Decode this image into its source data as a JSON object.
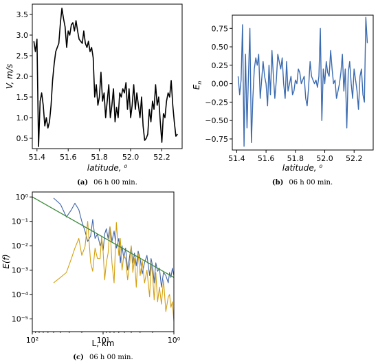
{
  "chart_data": [
    {
      "id": "a",
      "type": "line",
      "caption_tag": "(a)",
      "caption": "06 h 00 min.",
      "xlabel": "latitude, ⁰",
      "ylabel": "V, m/s",
      "xlim": [
        51.37,
        52.33
      ],
      "ylim": [
        0.25,
        3.75
      ],
      "xticks": [
        51.4,
        51.6,
        51.8,
        52.0,
        52.2
      ],
      "xtick_labels": [
        "51.4",
        "51.6",
        "51.8",
        "52.0",
        "52.2"
      ],
      "yticks": [
        0.5,
        1.0,
        1.5,
        2.0,
        2.5,
        3.0,
        3.5
      ],
      "ytick_labels": [
        "0.5",
        "1.0",
        "1.5",
        "2.0",
        "2.5",
        "3.0",
        "3.5"
      ],
      "color": "#000000",
      "series": [
        {
          "x": [
            51.38,
            51.39,
            51.4,
            51.41,
            51.42,
            51.43,
            51.44,
            51.45,
            51.46,
            51.47,
            51.48,
            51.49,
            51.5,
            51.51,
            51.52,
            51.53,
            51.54,
            51.55,
            51.56,
            51.57,
            51.58,
            51.59,
            51.6,
            51.61,
            51.62,
            51.63,
            51.64,
            51.65,
            51.66,
            51.67,
            51.68,
            51.69,
            51.7,
            51.71,
            51.72,
            51.73,
            51.74,
            51.75,
            51.76,
            51.77,
            51.78,
            51.79,
            51.8,
            51.81,
            51.82,
            51.83,
            51.84,
            51.85,
            51.86,
            51.87,
            51.88,
            51.89,
            51.9,
            51.91,
            51.92,
            51.93,
            51.94,
            51.95,
            51.96,
            51.97,
            51.98,
            51.99,
            52.0,
            52.01,
            52.02,
            52.03,
            52.04,
            52.05,
            52.06,
            52.07,
            52.08,
            52.09,
            52.1,
            52.11,
            52.12,
            52.13,
            52.14,
            52.15,
            52.16,
            52.17,
            52.18,
            52.19,
            52.2,
            52.21,
            52.22,
            52.23,
            52.24,
            52.25,
            52.26,
            52.27,
            52.28,
            52.29,
            52.3
          ],
          "y": [
            2.85,
            2.6,
            2.9,
            0.3,
            1.4,
            1.6,
            1.3,
            0.8,
            1.0,
            0.75,
            0.9,
            1.3,
            1.9,
            2.3,
            2.6,
            2.7,
            2.8,
            3.3,
            3.65,
            3.4,
            3.2,
            2.7,
            3.1,
            3.0,
            3.25,
            3.3,
            3.1,
            3.35,
            3.1,
            2.9,
            2.85,
            2.8,
            3.1,
            2.8,
            2.7,
            2.85,
            2.6,
            2.7,
            2.45,
            1.5,
            1.8,
            1.3,
            1.5,
            2.1,
            1.4,
            1.6,
            1.0,
            1.4,
            1.8,
            1.0,
            1.3,
            1.7,
            0.9,
            1.25,
            1.0,
            1.6,
            1.5,
            1.7,
            1.6,
            1.85,
            1.2,
            1.7,
            1.0,
            1.3,
            1.8,
            1.2,
            1.6,
            1.3,
            1.0,
            1.5,
            0.8,
            0.45,
            0.5,
            0.6,
            1.2,
            0.9,
            1.4,
            1.2,
            1.8,
            1.3,
            1.5,
            0.9,
            0.4,
            1.1,
            1.0,
            1.4,
            1.6,
            1.5,
            1.9,
            1.3,
            0.9,
            0.55,
            0.6
          ]
        }
      ]
    },
    {
      "id": "b",
      "type": "line",
      "caption_tag": "(b)",
      "caption": "06 h 00 min.",
      "xlabel": "latitude, ⁰",
      "ylabel": "E_n",
      "xlim": [
        51.37,
        52.33
      ],
      "ylim": [
        -0.9,
        0.93
      ],
      "xticks": [
        51.4,
        51.6,
        51.8,
        52.0,
        52.2
      ],
      "xtick_labels": [
        "51.4",
        "51.6",
        "51.8",
        "52.0",
        "52.2"
      ],
      "yticks": [
        -0.75,
        -0.5,
        -0.25,
        0.0,
        0.25,
        0.5,
        0.75
      ],
      "ytick_labels": [
        "−0.75",
        "−0.50",
        "−0.25",
        "0.00",
        "0.25",
        "0.50",
        "0.75"
      ],
      "color": "#3a6ab0",
      "series": [
        {
          "x": [
            51.41,
            51.42,
            51.43,
            51.44,
            51.45,
            51.46,
            51.47,
            51.48,
            51.49,
            51.5,
            51.51,
            51.52,
            51.53,
            51.54,
            51.55,
            51.56,
            51.57,
            51.58,
            51.59,
            51.6,
            51.61,
            51.62,
            51.63,
            51.64,
            51.65,
            51.66,
            51.67,
            51.68,
            51.69,
            51.7,
            51.71,
            51.72,
            51.73,
            51.74,
            51.75,
            51.76,
            51.77,
            51.78,
            51.79,
            51.8,
            51.81,
            51.82,
            51.83,
            51.84,
            51.85,
            51.86,
            51.87,
            51.88,
            51.89,
            51.9,
            51.91,
            51.92,
            51.93,
            51.94,
            51.95,
            51.96,
            51.97,
            51.98,
            51.99,
            52.0,
            52.01,
            52.02,
            52.03,
            52.04,
            52.05,
            52.06,
            52.07,
            52.08,
            52.09,
            52.1,
            52.11,
            52.12,
            52.13,
            52.14,
            52.15,
            52.16,
            52.17,
            52.18,
            52.19,
            52.2,
            52.21,
            52.22,
            52.23,
            52.24,
            52.25,
            52.26,
            52.27,
            52.28,
            52.29
          ],
          "y": [
            0.1,
            -0.15,
            0.05,
            0.8,
            -0.85,
            0.4,
            -0.6,
            0.1,
            0.75,
            -0.8,
            -0.2,
            0.2,
            0.35,
            0.25,
            0.4,
            -0.2,
            0.05,
            0.3,
            0.1,
            0.0,
            -0.3,
            0.25,
            -0.15,
            0.45,
            0.1,
            -0.2,
            0.05,
            0.4,
            0.3,
            0.2,
            0.35,
            0.0,
            -0.2,
            0.3,
            -0.1,
            0.0,
            0.1,
            -0.15,
            -0.1,
            0.05,
            0.0,
            0.2,
            0.15,
            0.0,
            0.05,
            0.1,
            -0.2,
            -0.3,
            -0.05,
            0.3,
            0.1,
            0.05,
            0.0,
            0.05,
            -0.05,
            0.1,
            0.75,
            -0.5,
            0.2,
            0.0,
            0.3,
            0.15,
            0.1,
            0.45,
            0.2,
            0.0,
            0.05,
            -0.2,
            -0.1,
            0.0,
            0.15,
            0.4,
            -0.1,
            0.2,
            -0.6,
            0.15,
            0.3,
            0.0,
            -0.2,
            0.2,
            0.05,
            -0.1,
            -0.35,
            0.1,
            0.2,
            -0.15,
            -0.25,
            0.9,
            0.55
          ]
        }
      ]
    },
    {
      "id": "c",
      "type": "line",
      "caption_tag": "(c)",
      "caption": "06 h 00 min.",
      "xlabel": "L, km",
      "ylabel": "E(f)",
      "xscale": "log",
      "yscale": "log",
      "x_reversed": true,
      "xlim": [
        100,
        1
      ],
      "ylim": [
        3e-06,
        1.6
      ],
      "xticks": [
        100,
        10,
        1
      ],
      "xtick_labels": [
        "10²",
        "10¹",
        "10⁰"
      ],
      "yticks": [
        1,
        0.1,
        0.01,
        0.001,
        0.0001,
        1e-05
      ],
      "ytick_labels": [
        "10⁰",
        "10⁻¹",
        "10⁻²",
        "10⁻³",
        "10⁻⁴",
        "10⁻⁵"
      ],
      "series": [
        {
          "color": "#4064a8",
          "x": [
            50,
            40,
            33,
            28,
            25,
            22,
            20,
            18,
            16.5,
            15,
            14,
            13,
            12,
            11,
            10.5,
            10,
            9.5,
            9,
            8.5,
            8,
            7.5,
            7,
            6.5,
            6,
            5.7,
            5.4,
            5.1,
            4.8,
            4.5,
            4.2,
            4.0,
            3.8,
            3.6,
            3.4,
            3.2,
            3.0,
            2.8,
            2.6,
            2.4,
            2.2,
            2.1,
            2.0,
            1.9,
            1.8,
            1.7,
            1.6,
            1.5,
            1.4,
            1.3,
            1.2,
            1.15,
            1.1,
            1.05,
            1.0
          ],
          "y": [
            0.9,
            0.5,
            0.15,
            0.3,
            0.55,
            0.3,
            0.1,
            0.04,
            0.015,
            0.025,
            0.12,
            0.02,
            0.03,
            0.01,
            0.015,
            0.006,
            0.03,
            0.05,
            0.02,
            0.06,
            0.015,
            0.04,
            0.008,
            0.02,
            0.002,
            0.01,
            0.003,
            0.008,
            0.001,
            0.004,
            0.009,
            0.002,
            0.005,
            0.0015,
            0.006,
            0.003,
            0.0007,
            0.002,
            0.004,
            0.0006,
            0.003,
            0.0015,
            0.0003,
            0.002,
            0.0009,
            0.0012,
            0.0002,
            0.0008,
            0.0006,
            0.0003,
            0.0008,
            0.0005,
            0.0012,
            0.0006
          ]
        },
        {
          "color": "#d4a010",
          "x": [
            50,
            40,
            33,
            28,
            25,
            22,
            20,
            18,
            16.5,
            15,
            14,
            13,
            12,
            11,
            10.5,
            10,
            9.5,
            9,
            8.5,
            8,
            7.5,
            7,
            6.5,
            6,
            5.7,
            5.4,
            5.1,
            4.8,
            4.5,
            4.2,
            4.0,
            3.8,
            3.6,
            3.4,
            3.2,
            3.0,
            2.8,
            2.6,
            2.4,
            2.2,
            2.1,
            2.0,
            1.9,
            1.8,
            1.7,
            1.6,
            1.5,
            1.4,
            1.3,
            1.2,
            1.15,
            1.1,
            1.05,
            1.0
          ],
          "y": [
            0.0003,
            0.0005,
            0.0008,
            0.003,
            0.008,
            0.02,
            0.004,
            0.009,
            0.1,
            0.002,
            0.0009,
            0.008,
            0.003,
            0.003,
            0.025,
            0.006,
            0.0004,
            0.002,
            0.005,
            0.06,
            0.002,
            0.0003,
            0.09,
            0.004,
            0.02,
            0.001,
            0.004,
            0.003,
            0.0004,
            0.002,
            0.01,
            0.0008,
            0.003,
            0.0002,
            0.005,
            0.0006,
            0.0025,
            0.0003,
            0.001,
            8e-05,
            0.002,
            0.0006,
            6e-05,
            0.0008,
            5e-05,
            0.0002,
            4e-05,
            0.0004,
            2e-05,
            8e-05,
            0.0001,
            3e-05,
            5e-05,
            8e-06
          ]
        },
        {
          "color": "#3a8a3a",
          "x": [
            100,
            1
          ],
          "y": [
            1.0,
            0.0005
          ]
        }
      ]
    }
  ]
}
